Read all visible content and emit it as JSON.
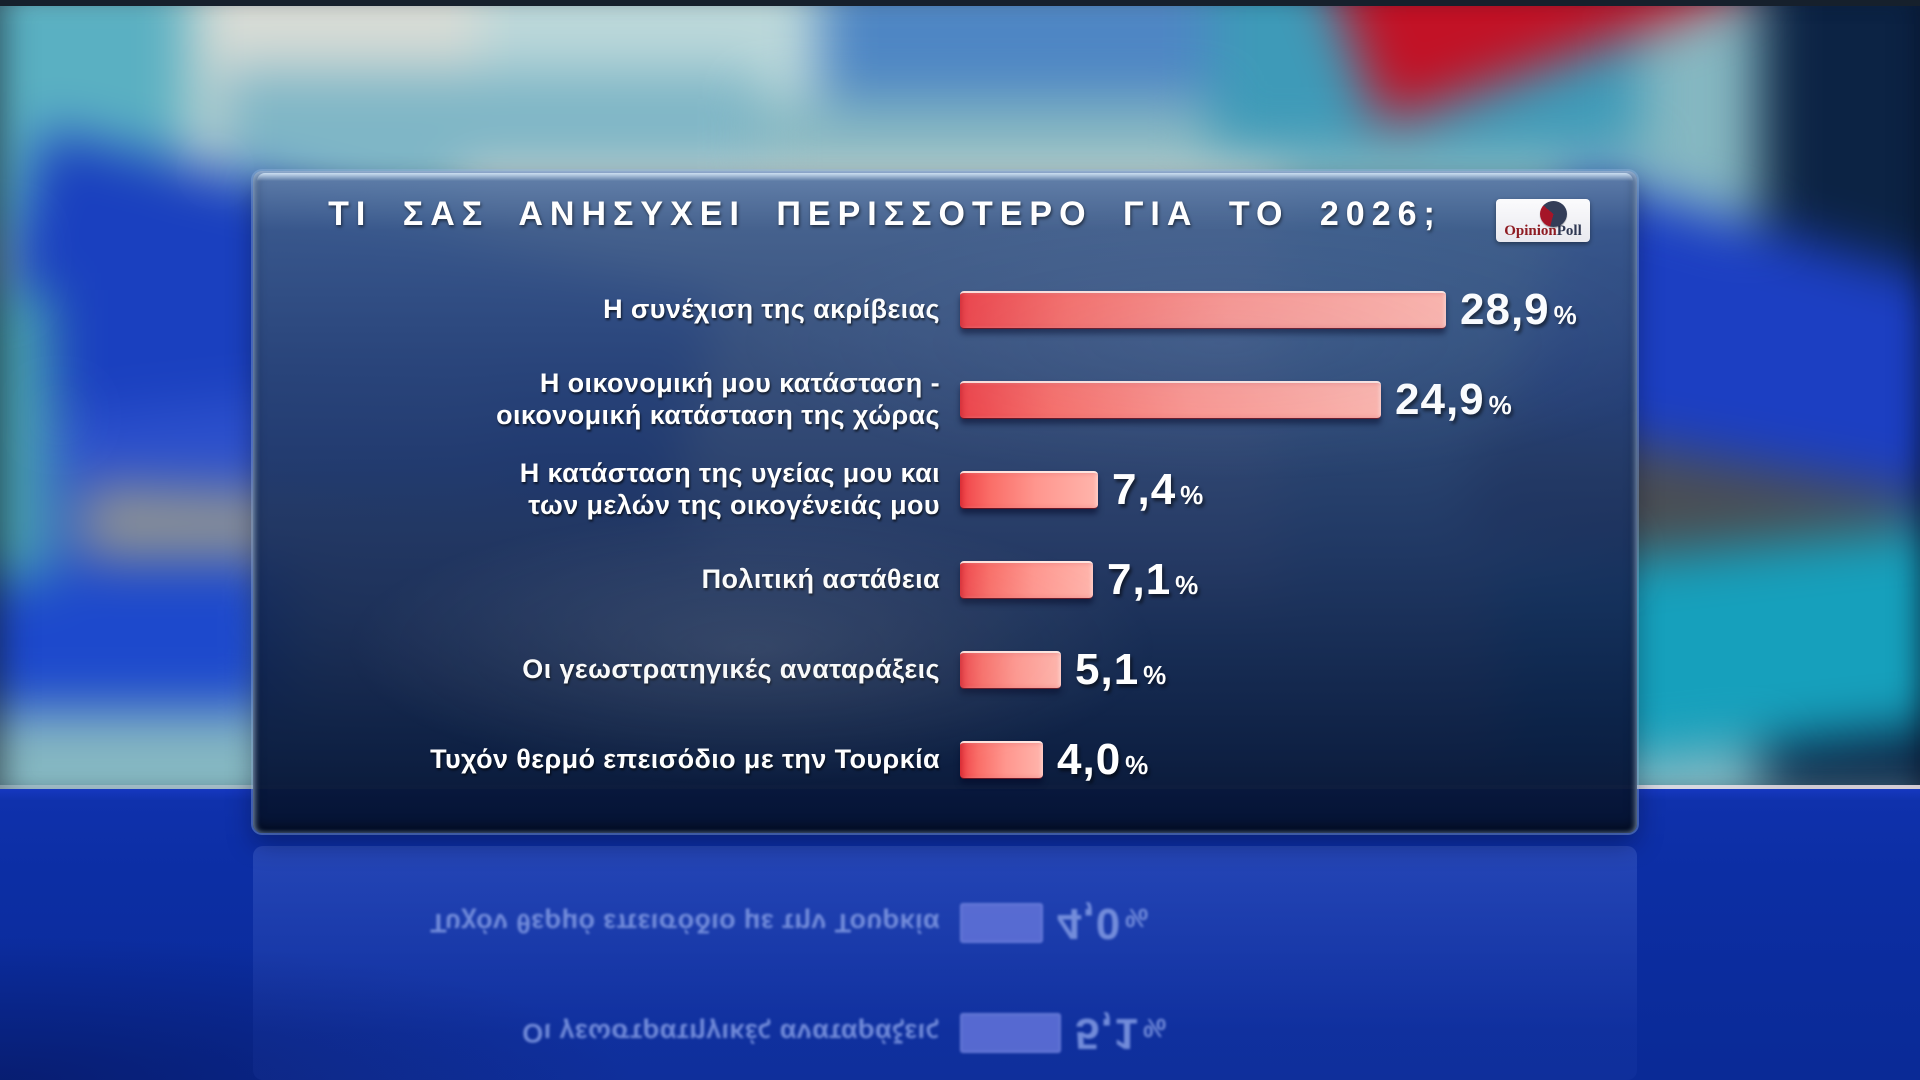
{
  "chart_data": {
    "type": "bar",
    "orientation": "horizontal",
    "title": "ΤΙ ΣΑΣ ΑΝΗΣΥΧΕΙ ΠΕΡΙΣΣΟΤΕΡΟ ΓΙΑ ΤΟ 2026;",
    "unit": "%",
    "value_axis_max": 28.9,
    "grid": false,
    "legend": "none",
    "categories": [
      "Η συνέχιση της ακρίβειας",
      "Η οικονομική μου κατάσταση - οικονομική κατάσταση της χώρας",
      "Η κατάσταση της υγείας μου και των μελών της οικογένειάς μου",
      "Πολιτική αστάθεια",
      "Οι γεωστρατηγικές αναταράξεις",
      "Τυχόν θερμό επεισόδιο με την Τουρκία"
    ],
    "values": [
      28.9,
      24.9,
      7.4,
      7.1,
      5.1,
      4.0
    ],
    "rows": [
      {
        "label_lines": [
          "Η συνέχιση της ακρίβειας"
        ],
        "value": 28.9,
        "value_label": "28,9"
      },
      {
        "label_lines": [
          "Η οικονομική μου κατάσταση -",
          "οικονομική κατάσταση της χώρας"
        ],
        "value": 24.9,
        "value_label": "24,9"
      },
      {
        "label_lines": [
          "Η κατάσταση της υγείας μου και",
          "των μελών της οικογένειάς μου"
        ],
        "value": 7.4,
        "value_label": "7,4"
      },
      {
        "label_lines": [
          "Πολιτική αστάθεια"
        ],
        "value": 7.1,
        "value_label": "7,1"
      },
      {
        "label_lines": [
          "Οι γεωστρατηγικές αναταράξεις"
        ],
        "value": 5.1,
        "value_label": "5,1"
      },
      {
        "label_lines": [
          "Τυχόν θερμό επεισόδιο με την Τουρκία"
        ],
        "value": 4.0,
        "value_label": "4,0"
      }
    ],
    "colors": {
      "bar_red": "#f4524e",
      "bar_highlight": "#ffb5ac",
      "bar_edge_dark": "#8a1020",
      "label_text": "#ffffff",
      "panel_blue_top": "#3f5c8c",
      "panel_blue_bottom": "#071b42",
      "floor_blue": "#0c2ea4",
      "reflection_tint": "#7e96e0"
    }
  },
  "logo": {
    "name": "OpinionPoll",
    "text_opinion": "Opinion",
    "text_poll": "Poll",
    "colors": {
      "wordmark_red": "#8e1b22",
      "wordmark_navy": "#2e3752",
      "pie_red": "#a51528",
      "pie_navy": "#333d58",
      "badge": "#f4f4f8"
    }
  }
}
